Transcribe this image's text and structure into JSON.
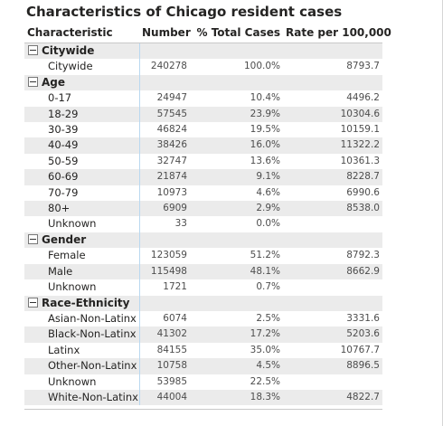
{
  "title": "Characteristics of Chicago resident cases",
  "columns": [
    "Characteristic",
    "Number",
    "% Total Cases",
    "Rate per 100,000"
  ],
  "groups": [
    {
      "name": "Citywide",
      "rows": [
        {
          "label": "Citywide",
          "number": "240278",
          "pct": "100.0%",
          "rate": "8793.7"
        }
      ]
    },
    {
      "name": "Age",
      "rows": [
        {
          "label": "0-17",
          "number": "24947",
          "pct": "10.4%",
          "rate": "4496.2"
        },
        {
          "label": "18-29",
          "number": "57545",
          "pct": "23.9%",
          "rate": "10304.6"
        },
        {
          "label": "30-39",
          "number": "46824",
          "pct": "19.5%",
          "rate": "10159.1"
        },
        {
          "label": "40-49",
          "number": "38426",
          "pct": "16.0%",
          "rate": "11322.2"
        },
        {
          "label": "50-59",
          "number": "32747",
          "pct": "13.6%",
          "rate": "10361.3"
        },
        {
          "label": "60-69",
          "number": "21874",
          "pct": "9.1%",
          "rate": "8228.7"
        },
        {
          "label": "70-79",
          "number": "10973",
          "pct": "4.6%",
          "rate": "6990.6"
        },
        {
          "label": "80+",
          "number": "6909",
          "pct": "2.9%",
          "rate": "8538.0"
        },
        {
          "label": "Unknown",
          "number": "33",
          "pct": "0.0%",
          "rate": ""
        }
      ]
    },
    {
      "name": "Gender",
      "rows": [
        {
          "label": "Female",
          "number": "123059",
          "pct": "51.2%",
          "rate": "8792.3"
        },
        {
          "label": "Male",
          "number": "115498",
          "pct": "48.1%",
          "rate": "8662.9"
        },
        {
          "label": "Unknown",
          "number": "1721",
          "pct": "0.7%",
          "rate": ""
        }
      ]
    },
    {
      "name": "Race-Ethnicity",
      "rows": [
        {
          "label": "Asian-Non-Latinx",
          "number": "6074",
          "pct": "2.5%",
          "rate": "3331.6"
        },
        {
          "label": "Black-Non-Latinx",
          "number": "41302",
          "pct": "17.2%",
          "rate": "5203.6"
        },
        {
          "label": "Latinx",
          "number": "84155",
          "pct": "35.0%",
          "rate": "10767.7"
        },
        {
          "label": "Other-Non-Latinx",
          "number": "10758",
          "pct": "4.5%",
          "rate": "8896.5"
        },
        {
          "label": "Unknown",
          "number": "53985",
          "pct": "22.5%",
          "rate": ""
        },
        {
          "label": "White-Non-Latinx",
          "number": "44004",
          "pct": "18.3%",
          "rate": "4822.7"
        }
      ]
    }
  ],
  "colors": {
    "band": "#ebebeb",
    "divider": "#b9d8f0",
    "text": "#252423"
  }
}
